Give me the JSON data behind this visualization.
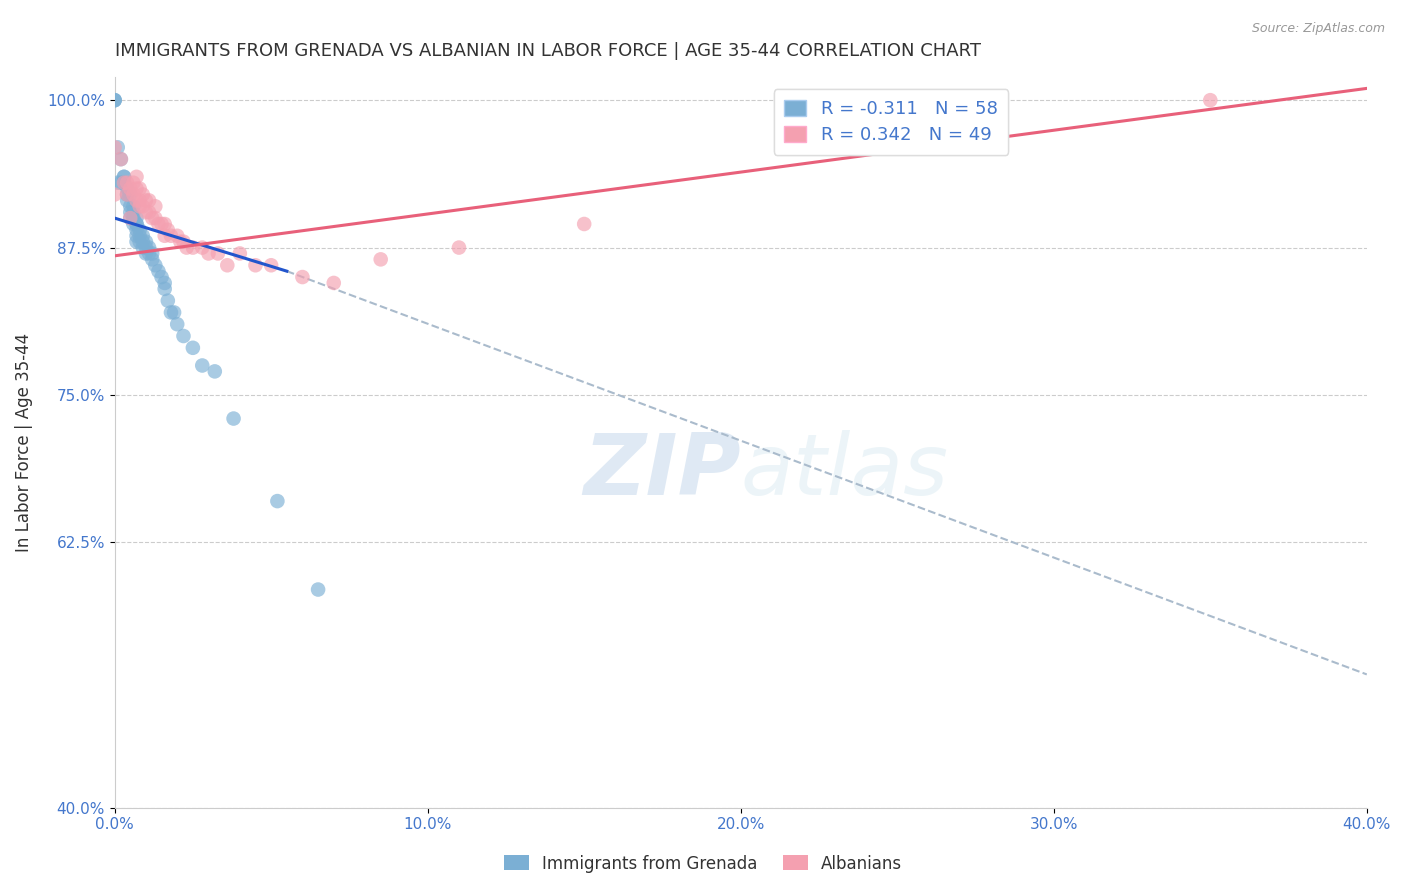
{
  "title": "IMMIGRANTS FROM GRENADA VS ALBANIAN IN LABOR FORCE | AGE 35-44 CORRELATION CHART",
  "source": "Source: ZipAtlas.com",
  "ylabel": "In Labor Force | Age 35-44",
  "xlabel": "",
  "xlim": [
    0.0,
    0.4
  ],
  "ylim": [
    0.4,
    1.02
  ],
  "xtick_labels": [
    "0.0%",
    "10.0%",
    "20.0%",
    "30.0%",
    "40.0%"
  ],
  "xtick_vals": [
    0.0,
    0.1,
    0.2,
    0.3,
    0.4
  ],
  "ytick_labels": [
    "40.0%",
    "62.5%",
    "75.0%",
    "87.5%",
    "100.0%"
  ],
  "ytick_vals": [
    0.4,
    0.625,
    0.75,
    0.875,
    1.0
  ],
  "grenada_color": "#7BAFD4",
  "albanian_color": "#F4A0B0",
  "grenada_R": -0.311,
  "grenada_N": 58,
  "albanian_R": 0.342,
  "albanian_N": 49,
  "trend_grenada_color": "#2255CC",
  "trend_albanian_color": "#E8607A",
  "trend_dashed_color": "#AABBCC",
  "background_color": "#FFFFFF",
  "watermark_zip": "ZIP",
  "watermark_atlas": "atlas",
  "grenada_scatter_x": [
    0.0,
    0.0,
    0.0,
    0.001,
    0.001,
    0.002,
    0.002,
    0.003,
    0.003,
    0.003,
    0.004,
    0.004,
    0.004,
    0.004,
    0.005,
    0.005,
    0.005,
    0.005,
    0.006,
    0.006,
    0.006,
    0.006,
    0.006,
    0.007,
    0.007,
    0.007,
    0.007,
    0.007,
    0.007,
    0.008,
    0.008,
    0.008,
    0.009,
    0.009,
    0.009,
    0.01,
    0.01,
    0.01,
    0.011,
    0.011,
    0.012,
    0.012,
    0.013,
    0.014,
    0.015,
    0.016,
    0.016,
    0.017,
    0.018,
    0.019,
    0.02,
    0.022,
    0.025,
    0.028,
    0.032,
    0.038,
    0.052,
    0.065
  ],
  "grenada_scatter_y": [
    1.0,
    1.0,
    1.0,
    0.96,
    0.93,
    0.95,
    0.93,
    0.935,
    0.935,
    0.93,
    0.925,
    0.92,
    0.92,
    0.915,
    0.92,
    0.91,
    0.905,
    0.9,
    0.91,
    0.905,
    0.9,
    0.895,
    0.9,
    0.9,
    0.895,
    0.895,
    0.89,
    0.885,
    0.88,
    0.89,
    0.885,
    0.88,
    0.885,
    0.88,
    0.875,
    0.88,
    0.875,
    0.87,
    0.875,
    0.87,
    0.87,
    0.865,
    0.86,
    0.855,
    0.85,
    0.845,
    0.84,
    0.83,
    0.82,
    0.82,
    0.81,
    0.8,
    0.79,
    0.775,
    0.77,
    0.73,
    0.66,
    0.585
  ],
  "albanian_scatter_x": [
    0.0,
    0.0,
    0.002,
    0.003,
    0.004,
    0.004,
    0.005,
    0.005,
    0.006,
    0.006,
    0.007,
    0.007,
    0.007,
    0.008,
    0.008,
    0.008,
    0.009,
    0.009,
    0.01,
    0.01,
    0.011,
    0.011,
    0.012,
    0.013,
    0.013,
    0.014,
    0.015,
    0.016,
    0.016,
    0.017,
    0.018,
    0.02,
    0.021,
    0.022,
    0.023,
    0.025,
    0.028,
    0.03,
    0.033,
    0.036,
    0.04,
    0.045,
    0.05,
    0.06,
    0.07,
    0.085,
    0.11,
    0.15,
    0.35
  ],
  "albanian_scatter_y": [
    0.96,
    0.92,
    0.95,
    0.93,
    0.93,
    0.92,
    0.925,
    0.9,
    0.93,
    0.92,
    0.935,
    0.925,
    0.915,
    0.925,
    0.915,
    0.91,
    0.92,
    0.91,
    0.915,
    0.905,
    0.915,
    0.905,
    0.9,
    0.91,
    0.9,
    0.895,
    0.895,
    0.895,
    0.885,
    0.89,
    0.885,
    0.885,
    0.88,
    0.88,
    0.875,
    0.875,
    0.875,
    0.87,
    0.87,
    0.86,
    0.87,
    0.86,
    0.86,
    0.85,
    0.845,
    0.865,
    0.875,
    0.895,
    1.0
  ],
  "legend_grenada_label": "R = -0.311   N = 58",
  "legend_albanian_label": "R = 0.342   N = 49",
  "legend_bottom_grenada": "Immigrants from Grenada",
  "legend_bottom_albanian": "Albanians",
  "trend_grenada_x0": 0.0,
  "trend_grenada_y0": 0.9,
  "trend_grenada_x1": 0.055,
  "trend_grenada_y1": 0.855,
  "trend_dashed_x0": 0.055,
  "trend_dashed_y0": 0.855,
  "trend_dashed_x1": 0.4,
  "trend_dashed_y1": 0.513,
  "trend_albanian_x0": 0.0,
  "trend_albanian_y0": 0.868,
  "trend_albanian_x1": 0.4,
  "trend_albanian_y1": 1.01
}
